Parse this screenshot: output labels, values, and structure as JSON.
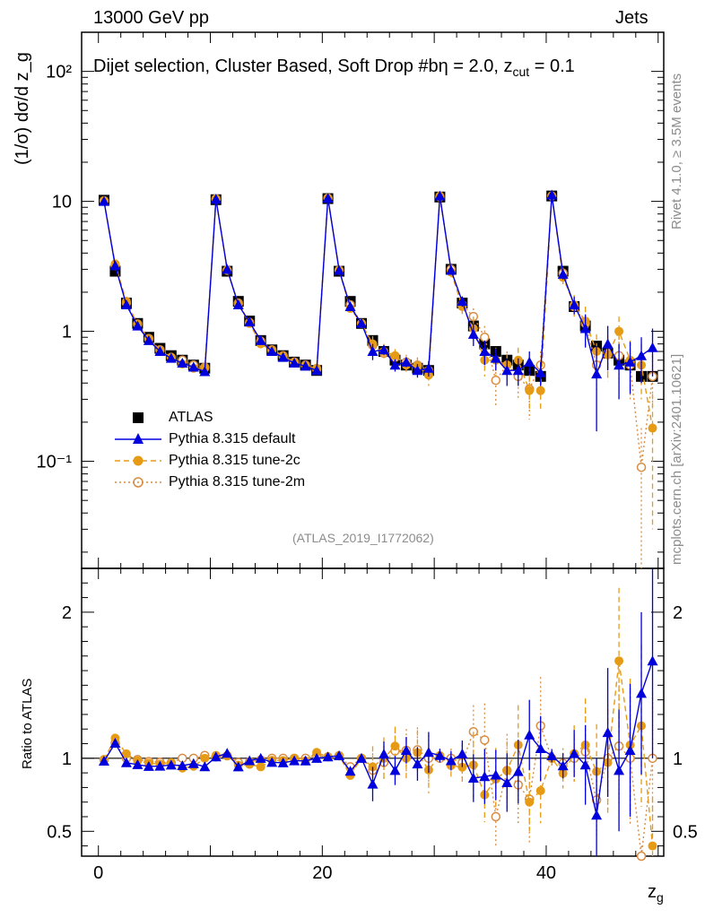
{
  "header": {
    "energy": "13000 GeV pp",
    "category": "Jets"
  },
  "side_labels": {
    "rivet": "Rivet 4.1.0, ≥ 3.5M events",
    "mcplots": "mcplots.cern.ch [arXiv:2401.10621]"
  },
  "analysis_id": "(ATLAS_2019_I1772062)",
  "colors": {
    "atlas": "#000000",
    "default": "#0000dd",
    "tune2c": "#e69b16",
    "tune2m": "#d98c40"
  },
  "chart_data": {
    "type": "line",
    "title": "Dijet selection, Cluster Based, Soft Drop #bη = 2.0, z_cut = 0.1",
    "title_main": "Dijet selection, Cluster Based, Soft Drop #bη = 2.0, z",
    "title_sub": "cut",
    "title_tail": " = 0.1",
    "xlabel": "z",
    "xlabel_sub": "g",
    "ylabel": "(1/σ) dσ/d z_g",
    "ratio_ylabel": "Ratio to ATLAS",
    "xlim": [
      -1.5,
      50.5
    ],
    "ylim": [
      0.015,
      200
    ],
    "yscale": "log",
    "ratio_ylim": [
      0.33,
      2.3
    ],
    "x_ticks": [
      "0",
      "20",
      "40"
    ],
    "y_ticks": [
      "10⁻¹",
      "1",
      "10",
      "10²"
    ],
    "ratio_ticks": [
      "0.5",
      "1",
      "2"
    ],
    "legend": [
      "ATLAS",
      "Pythia 8.315 default",
      "Pythia 8.315 tune-2c",
      "Pythia 8.315 tune-2m"
    ],
    "atlas": [
      10.2,
      2.9,
      1.65,
      1.15,
      0.9,
      0.74,
      0.65,
      0.6,
      0.55,
      0.52,
      10.3,
      2.9,
      1.7,
      1.2,
      0.85,
      0.72,
      0.65,
      0.58,
      0.55,
      0.5,
      10.5,
      2.9,
      1.7,
      1.15,
      0.85,
      0.7,
      0.6,
      0.55,
      0.52,
      0.5,
      10.8,
      3.0,
      1.65,
      1.1,
      0.8,
      0.7,
      0.6,
      0.55,
      0.5,
      0.45,
      11.0,
      2.9,
      1.55,
      1.1,
      0.77,
      0.68,
      0.6,
      0.55,
      0.45,
      0.45
    ],
    "series": [
      {
        "name": "Pythia 8.315 default",
        "values": [
          10.0,
          3.2,
          1.6,
          1.1,
          0.85,
          0.7,
          0.62,
          0.57,
          0.53,
          0.49,
          10.4,
          3.0,
          1.6,
          1.18,
          0.85,
          0.7,
          0.63,
          0.57,
          0.54,
          0.5,
          10.6,
          2.95,
          1.55,
          1.15,
          0.7,
          0.72,
          0.55,
          0.58,
          0.5,
          0.52,
          11.0,
          2.95,
          1.7,
          0.95,
          0.7,
          0.62,
          0.5,
          0.5,
          0.58,
          0.48,
          11.2,
          2.75,
          1.6,
          1.05,
          0.47,
          0.8,
          0.55,
          0.58,
          0.65,
          0.75
        ],
        "err": [
          0,
          0,
          0,
          0,
          0,
          0,
          0,
          0,
          0,
          0,
          0,
          0,
          0,
          0,
          0,
          0,
          0,
          0,
          0,
          0,
          0,
          0,
          0,
          0,
          0.1,
          0.06,
          0.06,
          0.05,
          0.06,
          0.07,
          0.5,
          0.2,
          0.15,
          0.18,
          0.15,
          0.12,
          0.12,
          0.12,
          0.12,
          0.1,
          0.5,
          0.25,
          0.25,
          0.3,
          0.3,
          0.3,
          0.25,
          0.25,
          0.25,
          0.3
        ]
      },
      {
        "name": "Pythia 8.315 tune-2c",
        "values": [
          10.1,
          3.3,
          1.7,
          1.13,
          0.87,
          0.71,
          0.63,
          0.56,
          0.52,
          0.52,
          10.5,
          2.95,
          1.62,
          1.15,
          0.8,
          0.71,
          0.64,
          0.58,
          0.54,
          0.52,
          10.6,
          2.95,
          1.5,
          1.15,
          0.8,
          0.7,
          0.65,
          0.55,
          0.54,
          0.46,
          11.0,
          2.85,
          1.55,
          1.05,
          0.6,
          0.6,
          0.55,
          0.6,
          0.35,
          0.35,
          11.0,
          2.6,
          1.6,
          1.2,
          0.7,
          0.66,
          1.0,
          0.6,
          0.55,
          0.18
        ],
        "err": [
          0,
          0,
          0,
          0,
          0,
          0,
          0,
          0,
          0,
          0,
          0,
          0,
          0,
          0,
          0,
          0,
          0,
          0,
          0,
          0,
          0,
          0,
          0,
          0,
          0.12,
          0.1,
          0.08,
          0.08,
          0.08,
          0.08,
          0.5,
          0.25,
          0.2,
          0.25,
          0.15,
          0.15,
          0.12,
          0.15,
          0.1,
          0.1,
          0.6,
          0.3,
          0.3,
          0.35,
          0.25,
          0.25,
          0.3,
          0.25,
          0.25,
          0.15
        ]
      },
      {
        "name": "Pythia 8.315 tune-2m",
        "values": [
          10.1,
          3.2,
          1.65,
          1.14,
          0.88,
          0.72,
          0.63,
          0.6,
          0.55,
          0.53,
          10.4,
          2.95,
          1.65,
          1.17,
          0.84,
          0.72,
          0.65,
          0.58,
          0.55,
          0.51,
          10.6,
          2.95,
          1.6,
          1.15,
          0.78,
          0.68,
          0.63,
          0.58,
          0.55,
          0.5,
          10.8,
          3.0,
          1.6,
          1.3,
          0.9,
          0.42,
          0.55,
          0.45,
          0.36,
          0.55,
          11.0,
          2.8,
          1.55,
          1.15,
          0.55,
          0.68,
          0.65,
          0.55,
          0.09,
          0.45
        ],
        "err": [
          0,
          0,
          0,
          0,
          0,
          0,
          0,
          0,
          0,
          0,
          0,
          0,
          0,
          0,
          0,
          0,
          0,
          0,
          0,
          0,
          0,
          0,
          0,
          0,
          0.1,
          0.08,
          0.08,
          0.08,
          0.08,
          0.08,
          0.5,
          0.2,
          0.2,
          0.2,
          0.2,
          0.15,
          0.15,
          0.15,
          0.15,
          0.15,
          0.6,
          0.3,
          0.25,
          0.3,
          0.2,
          0.25,
          0.25,
          0.25,
          0.09,
          0.2
        ]
      }
    ]
  }
}
